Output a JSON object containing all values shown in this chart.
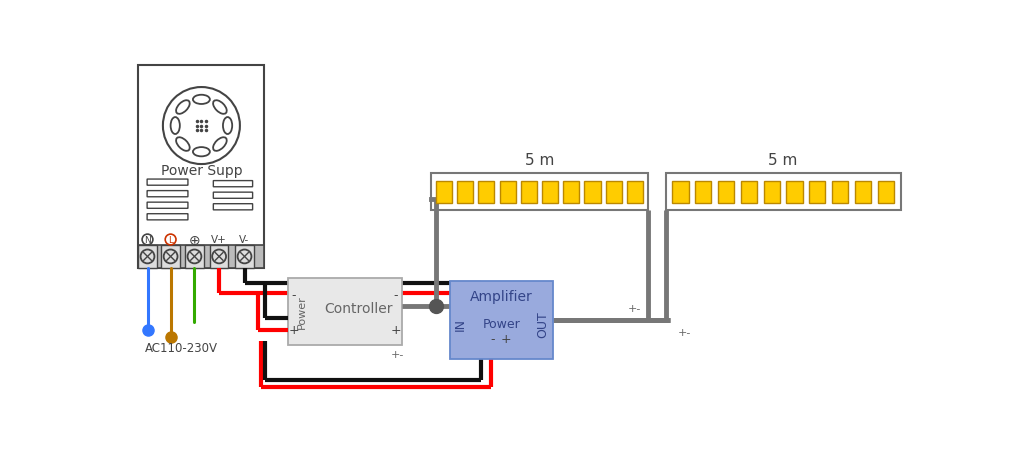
{
  "bg_color": "#ffffff",
  "wire_gray": "#777777",
  "wire_red": "#ff0000",
  "wire_black": "#111111",
  "wire_blue": "#3377ff",
  "wire_orange": "#bb7700",
  "wire_green": "#33aa00",
  "led_color": "#ffcc00",
  "led_border": "#bb8800",
  "controller_bg": "#e8e8e8",
  "controller_border": "#aaaaaa",
  "amplifier_bg": "#99aadd",
  "amplifier_border": "#6688cc",
  "ps_bg": "#ffffff",
  "ps_border": "#444444",
  "terminal_bg": "#cccccc",
  "text_dark": "#444444",
  "text_mid": "#666666",
  "text_blue": "#334488",
  "label_5m_1": "5 m",
  "label_5m_2": "5 m",
  "label_ps": "Power Supp",
  "label_controller": "Controller",
  "label_amplifier": "Amplifier",
  "label_power_ctrl": "Power",
  "label_power_amp": "Power",
  "label_ac": "AC110-230V",
  "label_in": "IN",
  "label_out": "OUT",
  "lw_wire": 3.0,
  "lw_thin_wire": 2.2
}
